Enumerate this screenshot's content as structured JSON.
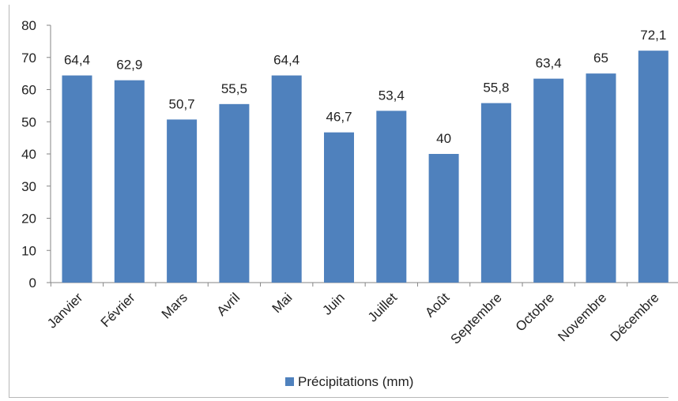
{
  "chart_data": {
    "type": "bar",
    "categories": [
      "Janvier",
      "Février",
      "Mars",
      "Avril",
      "Mai",
      "Juin",
      "Juillet",
      "Août",
      "Septembre",
      "Octobre",
      "Novembre",
      "Décembre"
    ],
    "series": [
      {
        "name": "Précipitations (mm)",
        "values": [
          64.4,
          62.9,
          50.7,
          55.5,
          64.4,
          46.7,
          53.4,
          40,
          55.8,
          63.4,
          65,
          72.1
        ],
        "labels": [
          "64,4",
          "62,9",
          "50,7",
          "55,5",
          "64,4",
          "46,7",
          "53,4",
          "40",
          "55,8",
          "63,4",
          "65",
          "72,1"
        ]
      }
    ],
    "ylim": [
      0,
      80
    ],
    "yticks": [
      0,
      10,
      20,
      30,
      40,
      50,
      60,
      70,
      80
    ],
    "grid": false,
    "legend_position": "bottom",
    "colors": {
      "bar": "#4f81bd",
      "axis": "#868686"
    }
  }
}
